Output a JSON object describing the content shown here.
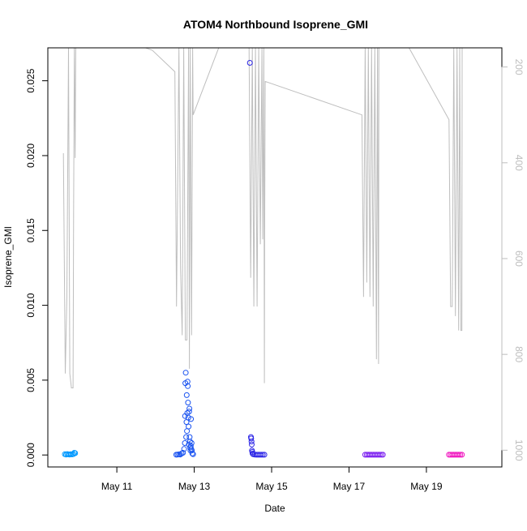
{
  "chart_data": {
    "type": "scatter",
    "title": "ATOM4 Northbound Isoprene_GMI",
    "xlabel": "Date",
    "ylabel": "Isoprene_GMI",
    "xlim": [
      "2018-05-09T05:12",
      "2018-05-20T22:48"
    ],
    "ylim": [
      -0.0008,
      0.0272
    ],
    "x_ticks": [
      {
        "date": "2018-05-11",
        "label": "May 11"
      },
      {
        "date": "2018-05-13",
        "label": "May 13"
      },
      {
        "date": "2018-05-15",
        "label": "May 15"
      },
      {
        "date": "2018-05-17",
        "label": "May 17"
      },
      {
        "date": "2018-05-19",
        "label": "May 19"
      }
    ],
    "y_ticks": [
      {
        "value": 0.0,
        "label": "0.000"
      },
      {
        "value": 0.005,
        "label": "0.005"
      },
      {
        "value": 0.01,
        "label": "0.010"
      },
      {
        "value": 0.015,
        "label": "0.015"
      },
      {
        "value": 0.02,
        "label": "0.020"
      },
      {
        "value": 0.025,
        "label": "0.025"
      }
    ],
    "y2lim": [
      1035,
      160
    ],
    "y2_ticks": [
      {
        "value": 200,
        "label": "200"
      },
      {
        "value": 400,
        "label": "400"
      },
      {
        "value": 600,
        "label": "600"
      },
      {
        "value": 800,
        "label": "800"
      },
      {
        "value": 1000,
        "label": "1000"
      }
    ],
    "grid": false,
    "legend": "none",
    "colors": {
      "pressure_line": "#bebebe",
      "axis": "#000000",
      "right_axis": "#bdbdbd"
    },
    "series": [
      {
        "kind": "points",
        "color": "#0099ff",
        "points": [
          [
            "2018-05-09T15:45",
            5e-05
          ],
          [
            "2018-05-09T16:30",
            3e-05
          ],
          [
            "2018-05-09T17:15",
            6e-05
          ],
          [
            "2018-05-09T18:00",
            4e-05
          ],
          [
            "2018-05-09T18:45",
            3e-05
          ],
          [
            "2018-05-09T19:30",
            5e-05
          ],
          [
            "2018-05-09T20:15",
            4e-05
          ],
          [
            "2018-05-09T21:00",
            6e-05
          ],
          [
            "2018-05-09T21:40",
            0.00015
          ],
          [
            "2018-05-09T22:10",
            0.00012
          ]
        ]
      },
      {
        "kind": "points",
        "color": "#1a53f0",
        "points": [
          [
            "2018-05-12T12:50",
            2e-05
          ],
          [
            "2018-05-12T13:40",
            3e-05
          ],
          [
            "2018-05-12T14:30",
            4e-05
          ],
          [
            "2018-05-12T15:20",
            3e-05
          ],
          [
            "2018-05-12T16:10",
            0.0001
          ],
          [
            "2018-05-12T17:00",
            0.00015
          ],
          [
            "2018-05-12T17:45",
            0.0004
          ],
          [
            "2018-05-12T18:10",
            0.0008
          ],
          [
            "2018-05-12T18:20",
            0.0026
          ],
          [
            "2018-05-12T18:30",
            0.0048
          ],
          [
            "2018-05-12T18:45",
            0.0055
          ],
          [
            "2018-05-12T19:00",
            0.0012
          ],
          [
            "2018-05-12T19:10",
            0.0022
          ],
          [
            "2018-05-12T19:20",
            0.004
          ],
          [
            "2018-05-12T19:30",
            0.0016
          ],
          [
            "2018-05-12T19:40",
            0.0028
          ],
          [
            "2018-05-12T19:50",
            0.0049
          ],
          [
            "2018-05-12T20:00",
            0.0046
          ],
          [
            "2018-05-12T20:10",
            0.0035
          ],
          [
            "2018-05-12T20:20",
            0.0025
          ],
          [
            "2018-05-12T20:30",
            0.0019
          ],
          [
            "2018-05-12T20:40",
            0.0007
          ],
          [
            "2018-05-12T20:50",
            0.0029
          ],
          [
            "2018-05-12T21:00",
            0.0031
          ],
          [
            "2018-05-12T21:10",
            0.0012
          ],
          [
            "2018-05-12T21:20",
            0.0009
          ],
          [
            "2018-05-12T21:30",
            0.0005
          ],
          [
            "2018-05-12T21:40",
            0.0003
          ],
          [
            "2018-05-12T21:50",
            0.0006
          ],
          [
            "2018-05-12T22:00",
            0.0024
          ],
          [
            "2018-05-12T22:10",
            0.0004
          ],
          [
            "2018-05-12T22:20",
            0.0008
          ],
          [
            "2018-05-12T22:30",
            0.0003
          ],
          [
            "2018-05-12T22:50",
            0.0001
          ],
          [
            "2018-05-12T23:20",
            5e-05
          ]
        ]
      },
      {
        "kind": "points",
        "color": "#2b24e6",
        "points": [
          [
            "2018-05-14T10:30",
            0.0262
          ],
          [
            "2018-05-14T11:10",
            0.0012
          ],
          [
            "2018-05-14T11:20",
            0.0011
          ],
          [
            "2018-05-14T11:30",
            0.0009
          ],
          [
            "2018-05-14T11:40",
            0.0007
          ],
          [
            "2018-05-14T11:50",
            0.0003
          ],
          [
            "2018-05-14T12:00",
            0.0002
          ],
          [
            "2018-05-14T12:10",
            0.0001
          ],
          [
            "2018-05-14T12:30",
            5e-05
          ],
          [
            "2018-05-14T13:30",
            3e-05
          ],
          [
            "2018-05-14T14:30",
            2e-05
          ],
          [
            "2018-05-14T15:30",
            2e-05
          ],
          [
            "2018-05-14T16:30",
            2e-05
          ],
          [
            "2018-05-14T17:30",
            2e-05
          ],
          [
            "2018-05-14T18:30",
            2e-05
          ],
          [
            "2018-05-14T19:30",
            2e-05
          ]
        ]
      },
      {
        "kind": "points",
        "color": "#7a1df0",
        "points": [
          [
            "2018-05-17T10:00",
            2e-05
          ],
          [
            "2018-05-17T11:00",
            2e-05
          ],
          [
            "2018-05-17T12:00",
            2e-05
          ],
          [
            "2018-05-17T13:00",
            2e-05
          ],
          [
            "2018-05-17T14:00",
            2e-05
          ],
          [
            "2018-05-17T15:00",
            2e-05
          ],
          [
            "2018-05-17T16:00",
            2e-05
          ],
          [
            "2018-05-17T17:00",
            2e-05
          ],
          [
            "2018-05-17T18:00",
            2e-05
          ],
          [
            "2018-05-17T19:00",
            2e-05
          ],
          [
            "2018-05-17T20:00",
            2e-05
          ],
          [
            "2018-05-17T21:00",
            2e-05
          ]
        ]
      },
      {
        "kind": "points",
        "color": "#f012be",
        "points": [
          [
            "2018-05-19T14:00",
            2e-05
          ],
          [
            "2018-05-19T15:00",
            2e-05
          ],
          [
            "2018-05-19T16:00",
            2e-05
          ],
          [
            "2018-05-19T17:00",
            2e-05
          ],
          [
            "2018-05-19T18:00",
            2e-05
          ],
          [
            "2018-05-19T19:00",
            2e-05
          ],
          [
            "2018-05-19T20:00",
            2e-05
          ],
          [
            "2018-05-19T21:00",
            2e-05
          ],
          [
            "2018-05-19T22:00",
            2e-05
          ]
        ]
      }
    ],
    "pressure_line": {
      "axis": "right",
      "color": "#bebebe",
      "points": [
        [
          "2018-05-09T14:50",
          380
        ],
        [
          "2018-05-09T16:00",
          840
        ],
        [
          "2018-05-09T17:00",
          680
        ],
        [
          "2018-05-09T18:00",
          160
        ],
        [
          "2018-05-09T18:50",
          840
        ],
        [
          "2018-05-09T19:50",
          870
        ],
        [
          "2018-05-09T20:50",
          870
        ],
        [
          "2018-05-09T21:10",
          500
        ],
        [
          "2018-05-09T21:40",
          160
        ],
        [
          "2018-05-09T22:10",
          390
        ],
        [
          "2018-05-09T22:30",
          160
        ],
        [
          "2018-05-10T00:00",
          110
        ],
        [
          "2018-05-11T22:00",
          165
        ],
        [
          "2018-05-12T12:00",
          210
        ],
        [
          "2018-05-12T13:00",
          700
        ],
        [
          "2018-05-12T14:30",
          160
        ],
        [
          "2018-05-12T15:30",
          620
        ],
        [
          "2018-05-12T16:30",
          760
        ],
        [
          "2018-05-12T17:30",
          160
        ],
        [
          "2018-05-12T18:30",
          770
        ],
        [
          "2018-05-12T19:30",
          770
        ],
        [
          "2018-05-12T20:30",
          160
        ],
        [
          "2018-05-12T21:00",
          830
        ],
        [
          "2018-05-12T21:30",
          160
        ],
        [
          "2018-05-12T22:20",
          760
        ],
        [
          "2018-05-12T23:00",
          160
        ],
        [
          "2018-05-12T23:20",
          300
        ],
        [
          "2018-05-13T22:00",
          100
        ],
        [
          "2018-05-14T10:00",
          160
        ],
        [
          "2018-05-14T11:00",
          640
        ],
        [
          "2018-05-14T12:00",
          160
        ],
        [
          "2018-05-14T13:00",
          700
        ],
        [
          "2018-05-14T14:00",
          160
        ],
        [
          "2018-05-14T15:00",
          700
        ],
        [
          "2018-05-14T16:00",
          160
        ],
        [
          "2018-05-14T17:00",
          570
        ],
        [
          "2018-05-14T18:00",
          160
        ],
        [
          "2018-05-14T18:30",
          560
        ],
        [
          "2018-05-14T19:10",
          160
        ],
        [
          "2018-05-14T19:30",
          860
        ],
        [
          "2018-05-14T19:40",
          560
        ],
        [
          "2018-05-14T20:00",
          230
        ],
        [
          "2018-05-17T08:00",
          300
        ],
        [
          "2018-05-17T09:00",
          680
        ],
        [
          "2018-05-17T10:00",
          160
        ],
        [
          "2018-05-17T11:00",
          650
        ],
        [
          "2018-05-17T12:00",
          160
        ],
        [
          "2018-05-17T13:00",
          680
        ],
        [
          "2018-05-17T14:00",
          160
        ],
        [
          "2018-05-17T15:00",
          700
        ],
        [
          "2018-05-17T16:00",
          160
        ],
        [
          "2018-05-17T17:00",
          810
        ],
        [
          "2018-05-17T17:40",
          160
        ],
        [
          "2018-05-17T18:20",
          820
        ],
        [
          "2018-05-17T18:30",
          160
        ],
        [
          "2018-05-18T00:00",
          80
        ],
        [
          "2018-05-19T14:00",
          310
        ],
        [
          "2018-05-19T15:00",
          700
        ],
        [
          "2018-05-19T16:00",
          700
        ],
        [
          "2018-05-19T17:00",
          160
        ],
        [
          "2018-05-19T18:00",
          720
        ],
        [
          "2018-05-19T19:00",
          160
        ],
        [
          "2018-05-19T20:00",
          750
        ],
        [
          "2018-05-19T20:40",
          160
        ],
        [
          "2018-05-19T21:20",
          750
        ],
        [
          "2018-05-19T22:00",
          750
        ],
        [
          "2018-05-19T22:10",
          160
        ]
      ]
    }
  }
}
